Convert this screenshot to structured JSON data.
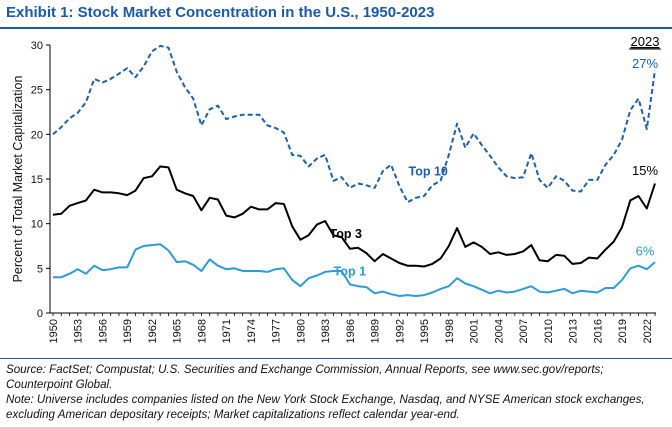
{
  "exhibit": {
    "title": "Exhibit 1: Stock Market Concentration in the U.S., 1950-2023"
  },
  "footnotes": {
    "source": "Source: FactSet; Compustat; U.S. Securities and Exchange Commission, Annual Reports, see www.sec.gov/reports; Counterpoint Global.",
    "note": "Note: Universe includes companies listed on the New York Stock Exchange, Nasdaq, and NYSE American stock exchanges, excluding American depositary receipts; Market capitalizations reflect calendar year-end."
  },
  "colors": {
    "title": "#1a5aa8",
    "top10": "#1f5fa6",
    "top3": "#000000",
    "top1": "#2e9bd6"
  },
  "chart_data": {
    "type": "line",
    "title": "",
    "xlabel": "",
    "ylabel": "Percent of Total Market Capitalization",
    "xlim": [
      1950,
      2023
    ],
    "ylim": [
      0,
      30
    ],
    "yticks": [
      0,
      5,
      10,
      15,
      20,
      25,
      30
    ],
    "xticks": [
      1950,
      1953,
      1956,
      1959,
      1962,
      1965,
      1968,
      1971,
      1974,
      1977,
      1980,
      1983,
      1986,
      1989,
      1992,
      1995,
      1998,
      2001,
      2004,
      2007,
      2010,
      2013,
      2016,
      2019,
      2022
    ],
    "grid": false,
    "legend": "none",
    "year_header": "2023",
    "x": [
      1950,
      1951,
      1952,
      1953,
      1954,
      1955,
      1956,
      1957,
      1958,
      1959,
      1960,
      1961,
      1962,
      1963,
      1964,
      1965,
      1966,
      1967,
      1968,
      1969,
      1970,
      1971,
      1972,
      1973,
      1974,
      1975,
      1976,
      1977,
      1978,
      1979,
      1980,
      1981,
      1982,
      1983,
      1984,
      1985,
      1986,
      1987,
      1988,
      1989,
      1990,
      1991,
      1992,
      1993,
      1994,
      1995,
      1996,
      1997,
      1998,
      1999,
      2000,
      2001,
      2002,
      2003,
      2004,
      2005,
      2006,
      2007,
      2008,
      2009,
      2010,
      2011,
      2012,
      2013,
      2014,
      2015,
      2016,
      2017,
      2018,
      2019,
      2020,
      2021,
      2022,
      2023
    ],
    "series": [
      {
        "name": "Top 10",
        "style": "dashed",
        "end_label": "27%",
        "values": [
          20.0,
          20.8,
          21.8,
          22.4,
          23.6,
          26.2,
          25.8,
          26.2,
          26.8,
          27.4,
          26.4,
          27.6,
          29.3,
          29.9,
          29.7,
          27.0,
          25.3,
          24.0,
          21.0,
          22.8,
          23.2,
          21.7,
          22.0,
          22.2,
          22.2,
          22.2,
          21.0,
          20.7,
          20.2,
          17.7,
          17.6,
          16.4,
          17.3,
          17.7,
          14.8,
          15.2,
          14.0,
          14.5,
          14.3,
          14.0,
          15.9,
          16.6,
          14.2,
          12.4,
          12.9,
          13.1,
          14.3,
          14.8,
          17.7,
          21.2,
          18.5,
          20.1,
          18.8,
          17.6,
          16.3,
          15.3,
          15.1,
          15.2,
          17.9,
          14.9,
          14.0,
          15.3,
          14.8,
          13.7,
          13.6,
          14.9,
          14.9,
          16.6,
          17.7,
          19.4,
          22.7,
          24.0,
          20.6,
          27.2
        ]
      },
      {
        "name": "Top 3",
        "style": "solid",
        "end_label": "15%",
        "values": [
          11.0,
          11.1,
          12.0,
          12.3,
          12.6,
          13.8,
          13.5,
          13.5,
          13.4,
          13.2,
          13.7,
          15.1,
          15.3,
          16.4,
          16.3,
          13.8,
          13.4,
          13.1,
          11.5,
          12.9,
          12.7,
          10.9,
          10.7,
          11.1,
          11.9,
          11.6,
          11.6,
          12.3,
          12.2,
          9.7,
          8.2,
          8.7,
          9.9,
          10.3,
          8.7,
          8.5,
          7.2,
          7.3,
          6.7,
          5.8,
          6.6,
          6.1,
          5.6,
          5.3,
          5.3,
          5.2,
          5.5,
          6.1,
          7.5,
          9.5,
          7.4,
          7.9,
          7.4,
          6.6,
          6.8,
          6.5,
          6.6,
          6.9,
          7.6,
          5.9,
          5.8,
          6.5,
          6.4,
          5.5,
          5.6,
          6.2,
          6.1,
          7.1,
          8.0,
          9.6,
          12.6,
          13.1,
          11.7,
          14.5
        ]
      },
      {
        "name": "Top 1",
        "style": "solid",
        "end_label": "6%",
        "values": [
          4.0,
          4.0,
          4.4,
          4.9,
          4.4,
          5.3,
          4.8,
          4.9,
          5.1,
          5.1,
          7.1,
          7.5,
          7.6,
          7.7,
          7.0,
          5.7,
          5.8,
          5.4,
          4.7,
          6.0,
          5.3,
          4.9,
          5.0,
          4.7,
          4.7,
          4.7,
          4.6,
          4.9,
          5.0,
          3.7,
          3.0,
          3.9,
          4.2,
          4.6,
          4.7,
          4.7,
          3.2,
          3.0,
          2.9,
          2.2,
          2.4,
          2.1,
          1.9,
          2.0,
          1.9,
          2.0,
          2.3,
          2.7,
          3.0,
          3.9,
          3.3,
          3.0,
          2.6,
          2.2,
          2.5,
          2.3,
          2.4,
          2.7,
          3.0,
          2.4,
          2.3,
          2.5,
          2.7,
          2.2,
          2.5,
          2.4,
          2.3,
          2.8,
          2.8,
          3.7,
          5.0,
          5.3,
          4.9,
          5.7
        ]
      }
    ],
    "inline_labels": [
      {
        "text": "Top 10",
        "series": "Top 10",
        "x": 1995.5,
        "y": 15.4
      },
      {
        "text": "Top 3",
        "series": "Top 3",
        "x": 1985.5,
        "y": 8.4
      },
      {
        "text": "Top 1",
        "series": "Top 1",
        "x": 1986.0,
        "y": 4.2
      }
    ]
  }
}
